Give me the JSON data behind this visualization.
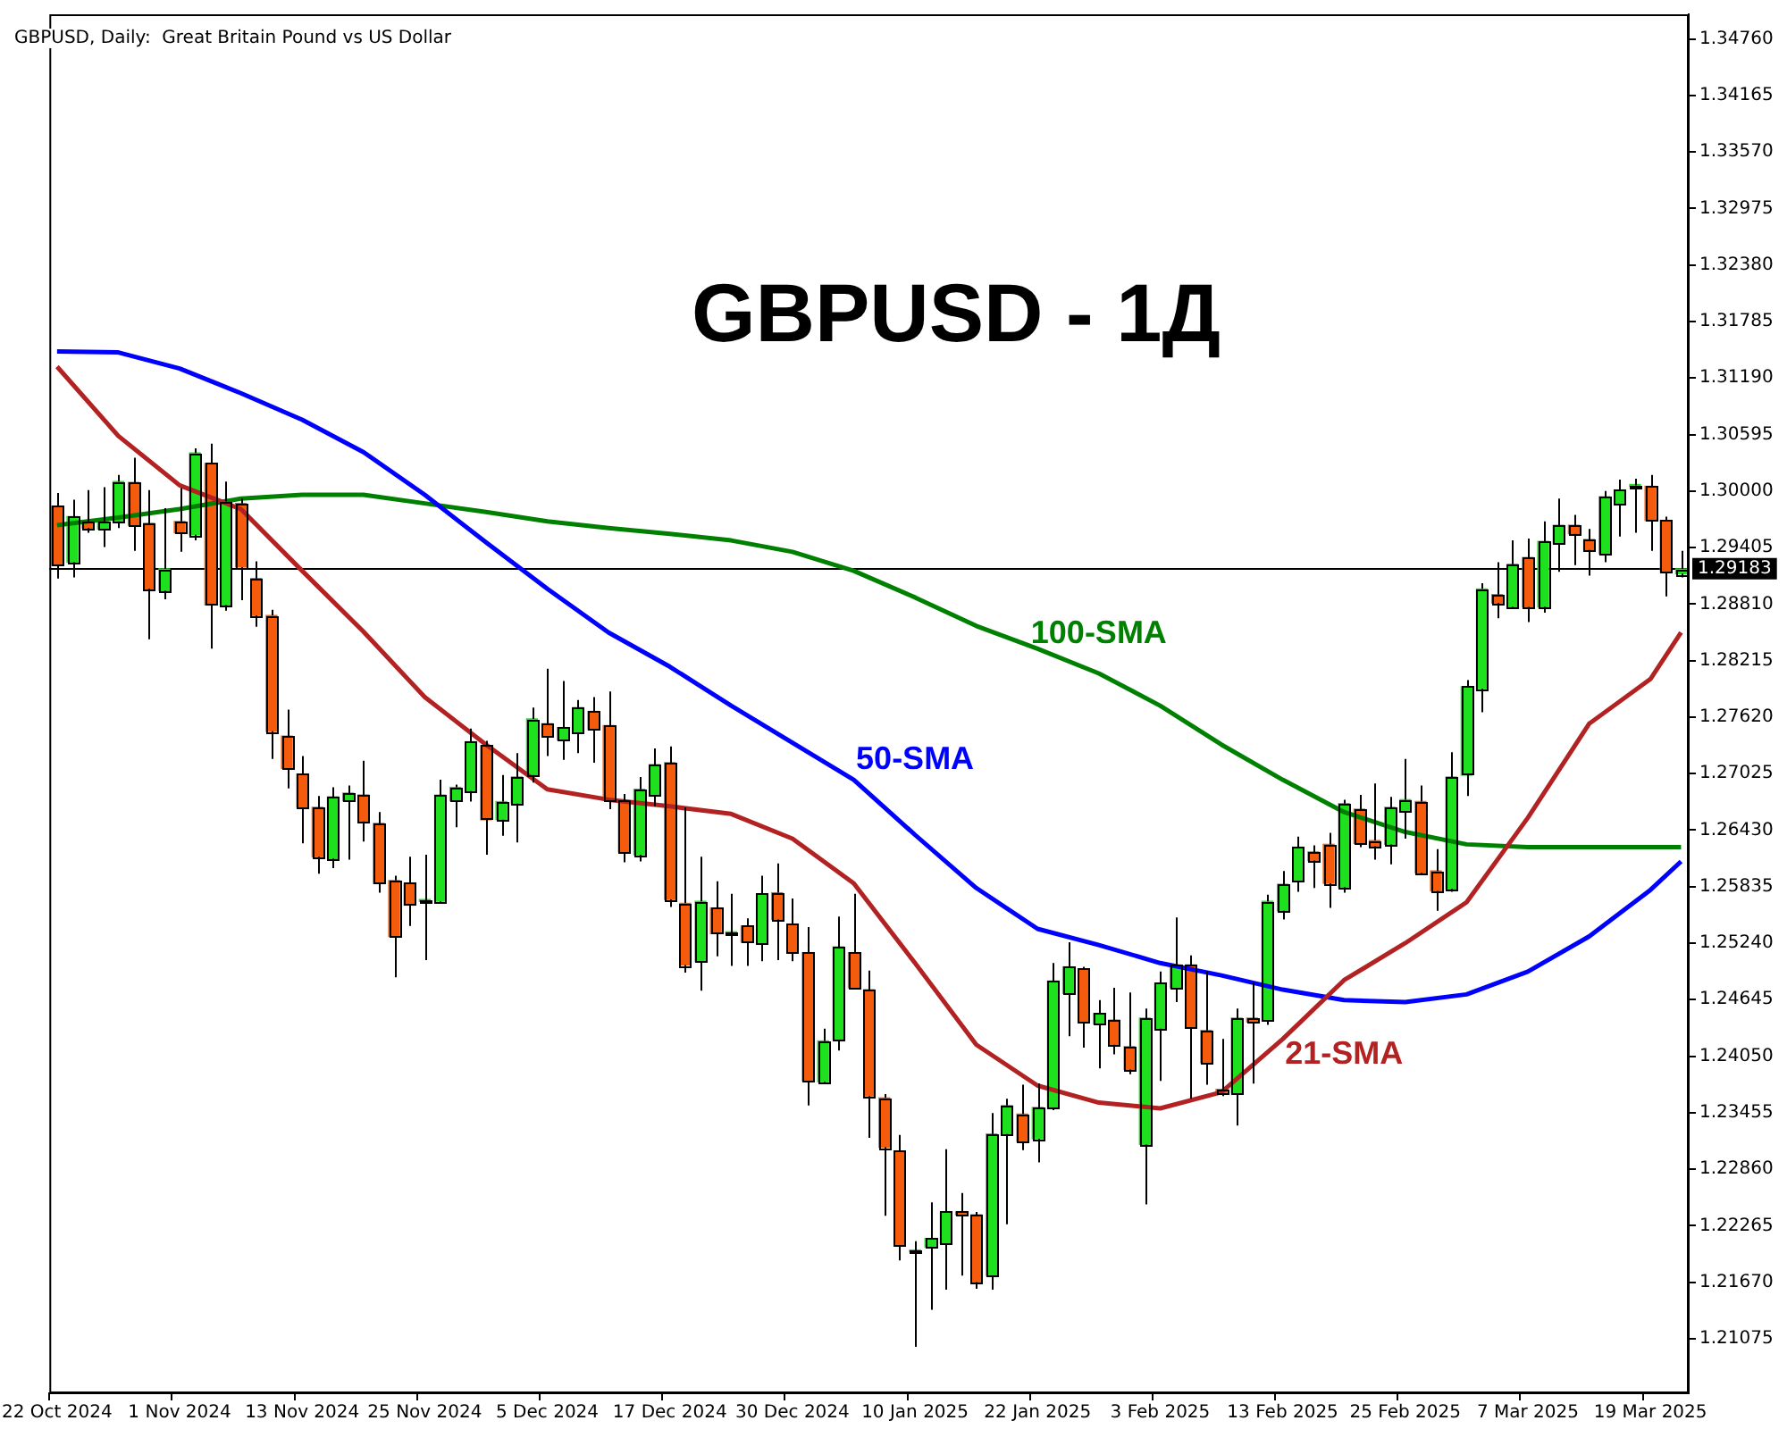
{
  "chart_data": {
    "type": "candlestick",
    "title": "GBPUSD - 1Д",
    "subtitle": "GBPUSD, Daily:  Great Britain Pound vs US Dollar",
    "categories": [
      "22 Oct 2024",
      null,
      null,
      null,
      null,
      null,
      null,
      null,
      "1 Nov 2024",
      null,
      null,
      null,
      null,
      null,
      null,
      null,
      "13 Nov 2024",
      null,
      null,
      null,
      null,
      null,
      null,
      null,
      "25 Nov 2024",
      null,
      null,
      null,
      null,
      null,
      null,
      null,
      "5 Dec 2024",
      null,
      null,
      null,
      null,
      null,
      null,
      null,
      "17 Dec 2024",
      null,
      null,
      null,
      null,
      null,
      null,
      null,
      "30 Dec 2024",
      null,
      null,
      null,
      null,
      null,
      null,
      null,
      "10 Jan 2025",
      null,
      null,
      null,
      null,
      null,
      null,
      null,
      "22 Jan 2025",
      null,
      null,
      null,
      null,
      null,
      null,
      null,
      "3 Feb 2025",
      null,
      null,
      null,
      null,
      null,
      null,
      null,
      "13 Feb 2025",
      null,
      null,
      null,
      null,
      null,
      null,
      null,
      "25 Feb 2025",
      null,
      null,
      null,
      null,
      null,
      null,
      null,
      "7 Mar 2025",
      null,
      null,
      null,
      null,
      null,
      null,
      null,
      "19 Mar 2025",
      null,
      null
    ],
    "ohlc": [
      [
        1.2984,
        1.2998,
        1.2908,
        1.2922
      ],
      [
        1.2925,
        1.2991,
        1.2909,
        1.2973
      ],
      [
        1.2968,
        1.3001,
        1.2956,
        1.2961
      ],
      [
        1.296,
        1.3004,
        1.2941,
        1.2968
      ],
      [
        1.2968,
        1.3017,
        1.2961,
        1.301
      ],
      [
        1.3009,
        1.3035,
        1.2937,
        1.2964
      ],
      [
        1.2966,
        1.3001,
        1.2844,
        1.2897
      ],
      [
        1.2895,
        1.2982,
        1.2886,
        1.2918
      ],
      [
        1.2968,
        1.3003,
        1.2936,
        1.2956
      ],
      [
        1.2954,
        1.3045,
        1.2948,
        1.304
      ],
      [
        1.3029,
        1.305,
        1.2834,
        1.288
      ],
      [
        1.288,
        1.301,
        1.2874,
        1.2989
      ],
      [
        1.2987,
        1.2992,
        1.2885,
        1.292
      ],
      [
        1.2908,
        1.2926,
        1.2857,
        1.2869
      ],
      [
        1.2869,
        1.2875,
        1.2718,
        1.2747
      ],
      [
        1.2742,
        1.277,
        1.2687,
        1.2708
      ],
      [
        1.2702,
        1.2721,
        1.2629,
        1.2667
      ],
      [
        1.2667,
        1.2679,
        1.2597,
        1.2615
      ],
      [
        1.2613,
        1.2688,
        1.2603,
        1.2678
      ],
      [
        1.2674,
        1.269,
        1.2612,
        1.2682
      ],
      [
        1.268,
        1.2716,
        1.2631,
        1.2652
      ],
      [
        1.265,
        1.2662,
        1.2577,
        1.2587
      ],
      [
        1.259,
        1.2595,
        1.2488,
        1.2531
      ],
      [
        1.2587,
        1.2615,
        1.2542,
        1.2564
      ],
      [
        1.2568,
        1.2617,
        1.2506,
        1.2569
      ],
      [
        1.2568,
        1.2696,
        1.2566,
        1.268
      ],
      [
        1.2674,
        1.2691,
        1.2646,
        1.2688
      ],
      [
        1.2684,
        1.275,
        1.2673,
        1.2736
      ],
      [
        1.2732,
        1.2737,
        1.2617,
        1.2654
      ],
      [
        1.2654,
        1.2701,
        1.2637,
        1.2673
      ],
      [
        1.2671,
        1.2724,
        1.263,
        1.2699
      ],
      [
        1.2701,
        1.2772,
        1.2693,
        1.276
      ],
      [
        1.2755,
        1.2813,
        1.2721,
        1.2742
      ],
      [
        1.2738,
        1.28,
        1.2717,
        1.2751
      ],
      [
        1.2745,
        1.278,
        1.2724,
        1.2772
      ],
      [
        1.2768,
        1.2783,
        1.2714,
        1.2749
      ],
      [
        1.2753,
        1.2789,
        1.2665,
        1.2674
      ],
      [
        1.2674,
        1.2681,
        1.2609,
        1.262
      ],
      [
        1.2617,
        1.2699,
        1.261,
        1.2686
      ],
      [
        1.268,
        1.2729,
        1.2668,
        1.2712
      ],
      [
        1.2714,
        1.2731,
        1.2562,
        1.257
      ],
      [
        1.2566,
        1.2667,
        1.2493,
        1.2501
      ],
      [
        1.2505,
        1.2615,
        1.2474,
        1.2568
      ],
      [
        1.2561,
        1.2589,
        1.251,
        1.2534
      ],
      [
        1.2534,
        1.2576,
        1.25,
        1.2535
      ],
      [
        1.2542,
        1.255,
        1.25,
        1.2525
      ],
      [
        1.2523,
        1.2595,
        1.2505,
        1.2576
      ],
      [
        1.2577,
        1.2608,
        1.2506,
        1.2549
      ],
      [
        1.2544,
        1.2571,
        1.2505,
        1.2514
      ],
      [
        1.2514,
        1.2541,
        1.2353,
        1.2379
      ],
      [
        1.2378,
        1.2434,
        1.2376,
        1.2421
      ],
      [
        1.2422,
        1.2552,
        1.2411,
        1.252
      ],
      [
        1.2514,
        1.2576,
        1.2475,
        1.2477
      ],
      [
        1.2475,
        1.2495,
        1.2319,
        1.2363
      ],
      [
        1.2361,
        1.2365,
        1.2237,
        1.2309
      ],
      [
        1.2305,
        1.2322,
        1.219,
        1.2206
      ],
      [
        1.2199,
        1.221,
        1.2099,
        1.22
      ],
      [
        1.2204,
        1.2251,
        1.2138,
        1.2213
      ],
      [
        1.2208,
        1.2307,
        1.2159,
        1.2241
      ],
      [
        1.2241,
        1.2261,
        1.2174,
        1.2238
      ],
      [
        1.2238,
        1.2241,
        1.216,
        1.2167
      ],
      [
        1.2174,
        1.2345,
        1.2159,
        1.2323
      ],
      [
        1.2323,
        1.236,
        1.2228,
        1.2353
      ],
      [
        1.2344,
        1.2375,
        1.2306,
        1.2315
      ],
      [
        1.2318,
        1.2376,
        1.2293,
        1.2351
      ],
      [
        1.2351,
        1.2503,
        1.2348,
        1.2484
      ],
      [
        1.2471,
        1.2525,
        1.2426,
        1.2499
      ],
      [
        1.2497,
        1.2499,
        1.2414,
        1.2441
      ],
      [
        1.2439,
        1.2464,
        1.2392,
        1.245
      ],
      [
        1.2443,
        1.2477,
        1.2407,
        1.2417
      ],
      [
        1.2415,
        1.2472,
        1.2386,
        1.2391
      ],
      [
        1.2312,
        1.2455,
        1.2249,
        1.2445
      ],
      [
        1.2434,
        1.2494,
        1.2379,
        1.2482
      ],
      [
        1.2477,
        1.2551,
        1.2462,
        1.2501
      ],
      [
        1.2501,
        1.2511,
        1.236,
        1.2435
      ],
      [
        1.2432,
        1.2494,
        1.2375,
        1.2398
      ],
      [
        1.237,
        1.2423,
        1.2363,
        1.2366
      ],
      [
        1.2366,
        1.2455,
        1.2332,
        1.2445
      ],
      [
        1.2445,
        1.2483,
        1.2376,
        1.2441
      ],
      [
        1.2443,
        1.2575,
        1.2438,
        1.2568
      ],
      [
        1.2558,
        1.26,
        1.2549,
        1.2586
      ],
      [
        1.2589,
        1.2636,
        1.2578,
        1.2625
      ],
      [
        1.262,
        1.2627,
        1.2582,
        1.2611
      ],
      [
        1.2628,
        1.264,
        1.2561,
        1.2587
      ],
      [
        1.2583,
        1.2675,
        1.2577,
        1.2671
      ],
      [
        1.2665,
        1.268,
        1.2625,
        1.2629
      ],
      [
        1.2632,
        1.2692,
        1.2612,
        1.2626
      ],
      [
        1.2628,
        1.2678,
        1.2607,
        1.2667
      ],
      [
        1.2663,
        1.2718,
        1.2634,
        1.2675
      ],
      [
        1.2673,
        1.269,
        1.2597,
        1.2598
      ],
      [
        1.26,
        1.2623,
        1.2558,
        1.2579
      ],
      [
        1.2581,
        1.2725,
        1.2578,
        1.2699
      ],
      [
        1.2701,
        1.2801,
        1.2679,
        1.2794
      ],
      [
        1.2792,
        1.2903,
        1.2767,
        1.2897
      ],
      [
        1.2891,
        1.2925,
        1.2866,
        1.2882
      ],
      [
        1.2878,
        1.2948,
        1.2877,
        1.2923
      ],
      [
        1.293,
        1.295,
        1.2862,
        1.2878
      ],
      [
        1.2878,
        1.2968,
        1.2872,
        1.2947
      ],
      [
        1.2945,
        1.2992,
        1.2915,
        1.2964
      ],
      [
        1.2964,
        1.2975,
        1.2922,
        1.2955
      ],
      [
        1.2949,
        1.296,
        1.2911,
        1.2938
      ],
      [
        1.2934,
        1.3,
        1.2925,
        1.2994
      ],
      [
        1.2986,
        1.3012,
        1.2952,
        1.3001
      ],
      [
        1.3005,
        1.3013,
        1.2956,
        1.3006
      ],
      [
        1.3005,
        1.3017,
        1.2937,
        1.2969
      ],
      [
        1.2969,
        1.2973,
        1.2889,
        1.2915
      ],
      [
        1.2913,
        1.2937,
        1.2909,
        1.2918
      ]
    ],
    "series": [
      {
        "name": "21-SMA",
        "type": "line",
        "color": "#b22222",
        "values": [
          1.3131,
          null,
          null,
          null,
          1.3058,
          null,
          null,
          null,
          1.3006,
          null,
          null,
          null,
          1.2981,
          null,
          null,
          null,
          1.2916,
          null,
          null,
          null,
          1.2852,
          null,
          null,
          null,
          1.2783,
          null,
          null,
          null,
          1.2733,
          null,
          null,
          null,
          1.2686,
          null,
          null,
          null,
          1.2675,
          null,
          null,
          null,
          1.2668,
          null,
          null,
          null,
          1.266,
          null,
          null,
          null,
          1.2634,
          null,
          null,
          null,
          1.2587,
          null,
          null,
          null,
          1.2503,
          null,
          null,
          null,
          1.2417,
          null,
          null,
          null,
          1.2374,
          null,
          null,
          null,
          1.2356,
          null,
          null,
          null,
          1.235,
          null,
          null,
          null,
          1.2367,
          null,
          null,
          null,
          1.2423,
          null,
          null,
          null,
          1.2485,
          null,
          null,
          null,
          1.2524,
          null,
          null,
          null,
          1.2567,
          null,
          null,
          null,
          1.2656,
          null,
          null,
          null,
          1.2755,
          null,
          null,
          null,
          1.2802,
          null,
          1.2851
        ]
      },
      {
        "name": "50-SMA",
        "type": "line",
        "color": "#0000ff",
        "values": [
          1.3147,
          null,
          null,
          null,
          1.3146,
          null,
          null,
          null,
          1.3129,
          null,
          null,
          null,
          1.3103,
          null,
          null,
          null,
          1.3075,
          null,
          null,
          null,
          1.3041,
          null,
          null,
          null,
          1.2996,
          null,
          null,
          null,
          1.2946,
          null,
          null,
          null,
          1.2897,
          null,
          null,
          null,
          1.2851,
          null,
          null,
          null,
          1.2815,
          null,
          null,
          null,
          1.2774,
          null,
          null,
          null,
          1.2735,
          null,
          null,
          null,
          1.2696,
          null,
          null,
          null,
          1.2638,
          null,
          null,
          null,
          1.2582,
          null,
          null,
          null,
          1.2539,
          null,
          null,
          null,
          1.2522,
          null,
          null,
          null,
          1.2503,
          null,
          null,
          null,
          1.249,
          null,
          null,
          null,
          1.2475,
          null,
          null,
          null,
          1.2464,
          null,
          null,
          null,
          1.2462,
          null,
          null,
          null,
          1.247,
          null,
          null,
          null,
          1.2494,
          null,
          null,
          null,
          1.2531,
          null,
          null,
          null,
          1.258,
          null,
          1.261
        ]
      },
      {
        "name": "100-SMA",
        "type": "line",
        "color": "#008000",
        "values": [
          1.2964,
          null,
          null,
          null,
          1.2972,
          null,
          null,
          null,
          1.2981,
          null,
          null,
          null,
          1.2992,
          null,
          null,
          null,
          1.2996,
          null,
          null,
          null,
          1.2996,
          null,
          null,
          null,
          1.2987,
          null,
          null,
          null,
          1.2978,
          null,
          null,
          null,
          1.2968,
          null,
          null,
          null,
          1.2961,
          null,
          null,
          null,
          1.2955,
          null,
          null,
          null,
          1.2948,
          null,
          null,
          null,
          1.2936,
          null,
          null,
          null,
          1.2916,
          null,
          null,
          null,
          1.2888,
          null,
          null,
          null,
          1.2858,
          null,
          null,
          null,
          1.2834,
          null,
          null,
          null,
          1.2808,
          null,
          null,
          null,
          1.2774,
          null,
          null,
          null,
          1.2733,
          null,
          null,
          null,
          1.2696,
          null,
          null,
          null,
          1.2662,
          null,
          null,
          null,
          1.2641,
          null,
          null,
          null,
          1.2628,
          null,
          null,
          null,
          1.2625,
          null,
          null,
          null,
          1.2625,
          null,
          null,
          null,
          1.2625,
          null,
          1.2625
        ]
      }
    ],
    "ylim": [
      1.205,
      1.3502
    ],
    "yticks": [
      {
        "value": 1.3476,
        "label": "1.34760"
      },
      {
        "value": 1.34165,
        "label": "1.34165"
      },
      {
        "value": 1.3357,
        "label": "1.33570"
      },
      {
        "value": 1.32975,
        "label": "1.32975"
      },
      {
        "value": 1.3238,
        "label": "1.32380"
      },
      {
        "value": 1.31785,
        "label": "1.31785"
      },
      {
        "value": 1.3119,
        "label": "1.31190"
      },
      {
        "value": 1.30595,
        "label": "1.30595"
      },
      {
        "value": 1.3,
        "label": "1.30000"
      },
      {
        "value": 1.29405,
        "label": "1.29405"
      },
      {
        "value": 1.2881,
        "label": "1.28810"
      },
      {
        "value": 1.28215,
        "label": "1.28215"
      },
      {
        "value": 1.2762,
        "label": "1.27620"
      },
      {
        "value": 1.27025,
        "label": "1.27025"
      },
      {
        "value": 1.2643,
        "label": "1.26430"
      },
      {
        "value": 1.25835,
        "label": "1.25835"
      },
      {
        "value": 1.2524,
        "label": "1.25240"
      },
      {
        "value": 1.24645,
        "label": "1.24645"
      },
      {
        "value": 1.2405,
        "label": "1.24050"
      },
      {
        "value": 1.23455,
        "label": "1.23455"
      },
      {
        "value": 1.2286,
        "label": "1.22860"
      },
      {
        "value": 1.22265,
        "label": "1.22265"
      },
      {
        "value": 1.2167,
        "label": "1.21670"
      },
      {
        "value": 1.21075,
        "label": "1.21075"
      }
    ],
    "ref_lines": [
      {
        "axis": "y",
        "value": 1.29183,
        "label": "1.29183",
        "color": "#000000"
      }
    ],
    "legend": false
  }
}
